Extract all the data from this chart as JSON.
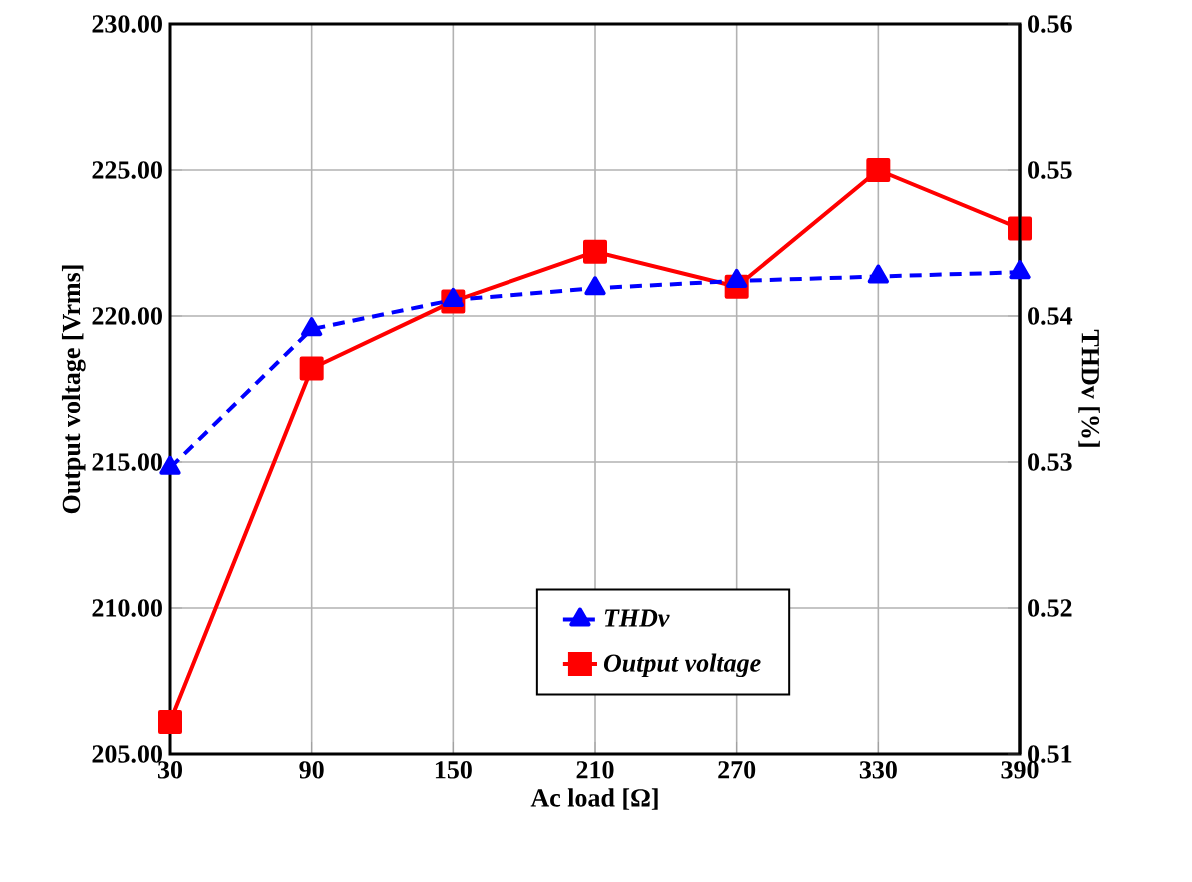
{
  "chart_data": {
    "type": "line",
    "xlabel": "Ac load [Ω]",
    "ylabel": "Output voltage [Vrms]",
    "y2label": "THDv [%]",
    "x": [
      30,
      90,
      150,
      210,
      270,
      330,
      390
    ],
    "series": [
      {
        "name": "THDv",
        "color": "#0000ff",
        "axis": "y2",
        "marker": "triangle",
        "line_style": "dashed",
        "values": [
          0.5296,
          0.5391,
          0.5411,
          0.5419,
          0.5424,
          0.5427,
          0.543
        ]
      },
      {
        "name": "Output voltage",
        "color": "#ff0000",
        "marker": "square",
        "line_style": "solid",
        "values": [
          206.1,
          218.2,
          220.5,
          222.2,
          221.0,
          225.0,
          223.0
        ]
      }
    ],
    "xlim": [
      30,
      390
    ],
    "xticks": [
      30,
      90,
      150,
      210,
      270,
      330,
      390
    ],
    "ylim": [
      205,
      230
    ],
    "yticks": [
      {
        "value": 205,
        "label": "205.00"
      },
      {
        "value": 210,
        "label": "210.00"
      },
      {
        "value": 215,
        "label": "215.00"
      },
      {
        "value": 220,
        "label": "220.00"
      },
      {
        "value": 225,
        "label": "225.00"
      },
      {
        "value": 230,
        "label": "230.00"
      }
    ],
    "y2lim": [
      0.51,
      0.56
    ],
    "y2ticks": [
      0.51,
      0.52,
      0.53,
      0.54,
      0.55,
      0.56
    ],
    "grid": true,
    "legend": "bottom"
  }
}
